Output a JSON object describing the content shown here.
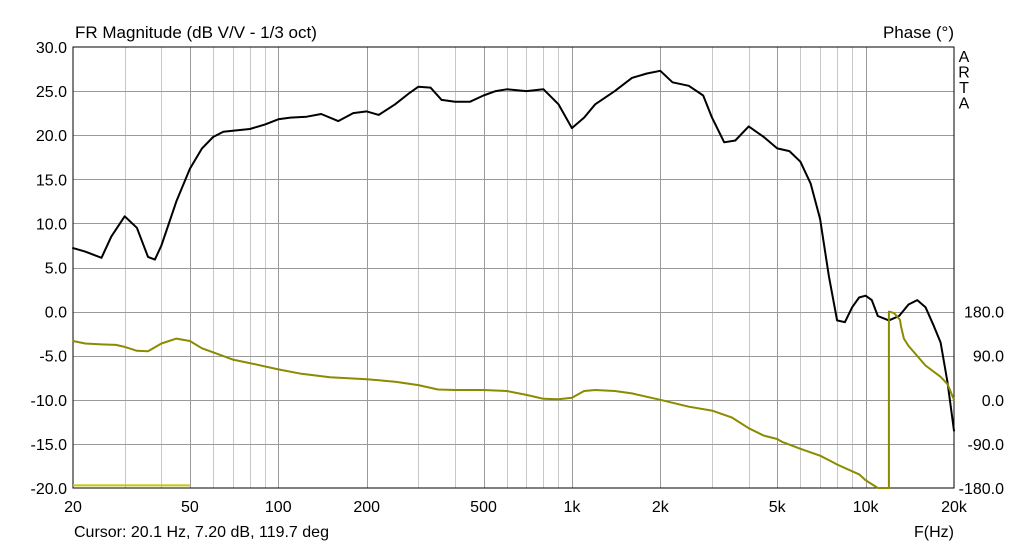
{
  "chart_data": {
    "type": "line",
    "title": "FR Magnitude (dB V/V - 1/3 oct)",
    "right_title": "Phase (°)",
    "brand": "ARTA",
    "xlabel": "F(Hz)",
    "cursor_text": "Cursor: 20.1 Hz, 7.20 dB, 119.7 deg",
    "x_scale": "log",
    "xlim": [
      20,
      20000
    ],
    "ylim_left": [
      -20,
      30
    ],
    "ylim_right": [
      -180,
      180
    ],
    "x_ticks": [
      {
        "value": 20,
        "label": "20"
      },
      {
        "value": 50,
        "label": "50"
      },
      {
        "value": 100,
        "label": "100"
      },
      {
        "value": 200,
        "label": "200"
      },
      {
        "value": 500,
        "label": "500"
      },
      {
        "value": 1000,
        "label": "1k"
      },
      {
        "value": 2000,
        "label": "2k"
      },
      {
        "value": 5000,
        "label": "5k"
      },
      {
        "value": 10000,
        "label": "10k"
      },
      {
        "value": 20000,
        "label": "20k"
      }
    ],
    "y_ticks_left": [
      {
        "value": 30,
        "label": "30.0"
      },
      {
        "value": 25,
        "label": "25.0"
      },
      {
        "value": 20,
        "label": "20.0"
      },
      {
        "value": 15,
        "label": "15.0"
      },
      {
        "value": 10,
        "label": "10.0"
      },
      {
        "value": 5,
        "label": "5.0"
      },
      {
        "value": 0,
        "label": "0.0"
      },
      {
        "value": -5,
        "label": "-5.0"
      },
      {
        "value": -10,
        "label": "-10.0"
      },
      {
        "value": -15,
        "label": "-15.0"
      },
      {
        "value": -20,
        "label": "-20.0"
      }
    ],
    "y_ticks_right": [
      {
        "value": 180,
        "label": "180.0"
      },
      {
        "value": 90,
        "label": "90.0"
      },
      {
        "value": 0,
        "label": "0.0"
      },
      {
        "value": -90,
        "label": "-90.0"
      },
      {
        "value": -180,
        "label": "-180.0"
      }
    ],
    "grid": true,
    "colors": {
      "magnitude": "#000000",
      "phase": "#8b8b00",
      "marker": "#c8c800",
      "grid": "#c8c8c8"
    },
    "marker_segment": {
      "x": [
        20,
        50
      ],
      "y_db": -19.7
    },
    "series": [
      {
        "axis": "left",
        "x": [
          20,
          22,
          25,
          27,
          30,
          33,
          36,
          38,
          40,
          45,
          50,
          55,
          60,
          65,
          70,
          80,
          90,
          100,
          110,
          125,
          140,
          160,
          180,
          200,
          220,
          250,
          280,
          300,
          330,
          360,
          400,
          450,
          500,
          550,
          600,
          700,
          800,
          900,
          1000,
          1100,
          1200,
          1400,
          1600,
          1800,
          2000,
          2200,
          2500,
          2800,
          3000,
          3300,
          3600,
          4000,
          4500,
          5000,
          5500,
          6000,
          6500,
          7000,
          7500,
          8000,
          8500,
          9000,
          9500,
          10000,
          10500,
          11000,
          12000,
          13000,
          14000,
          15000,
          16000,
          17000,
          18000,
          19000,
          20000
        ],
        "values": [
          7.2,
          6.8,
          6.1,
          8.5,
          10.8,
          9.5,
          6.2,
          5.9,
          7.5,
          12.5,
          16.2,
          18.5,
          19.8,
          20.4,
          20.5,
          20.7,
          21.2,
          21.8,
          22.0,
          22.1,
          22.4,
          21.6,
          22.5,
          22.7,
          22.3,
          23.5,
          24.8,
          25.5,
          25.4,
          24.0,
          23.8,
          23.8,
          24.5,
          25.0,
          25.2,
          25.0,
          25.2,
          23.5,
          20.8,
          22.0,
          23.5,
          25.0,
          26.5,
          27.0,
          27.3,
          26.0,
          25.6,
          24.5,
          22.0,
          19.2,
          19.4,
          21.0,
          19.8,
          18.5,
          18.2,
          17.0,
          14.5,
          10.5,
          4.0,
          -1.0,
          -1.2,
          0.5,
          1.6,
          1.8,
          1.3,
          -0.5,
          -1.0,
          -0.5,
          0.8,
          1.3,
          0.5,
          -1.5,
          -3.5,
          -8.0,
          -13.5
        ]
      },
      {
        "axis": "right",
        "x": [
          20,
          22,
          25,
          28,
          30,
          33,
          36,
          40,
          45,
          50,
          55,
          60,
          70,
          80,
          100,
          120,
          150,
          200,
          250,
          300,
          350,
          400,
          500,
          600,
          700,
          800,
          900,
          1000,
          1100,
          1200,
          1400,
          1600,
          2000,
          2500,
          3000,
          3500,
          4000,
          4500,
          5000,
          5100,
          5200,
          5600,
          6000,
          7000,
          7500,
          8000,
          9000,
          9500,
          10000,
          11000,
          12000,
          12500,
          13100,
          13200,
          13500,
          14000,
          16000,
          18000,
          19000,
          20000
        ],
        "values": [
          120,
          115,
          113,
          112,
          108,
          100,
          99,
          115,
          125,
          120,
          105,
          97,
          82,
          75,
          62,
          53,
          46,
          42,
          37,
          30,
          21,
          20,
          20,
          18,
          10,
          2,
          1,
          4,
          18,
          20,
          18,
          13,
          0,
          -14,
          -22,
          -36,
          -58,
          -73,
          -80,
          -83,
          -86,
          -93,
          -100,
          -114,
          -123,
          -132,
          -146,
          -152,
          -164,
          -180,
          180,
          177,
          163,
          150,
          125,
          110,
          70,
          47,
          32,
          0
        ]
      }
    ]
  }
}
